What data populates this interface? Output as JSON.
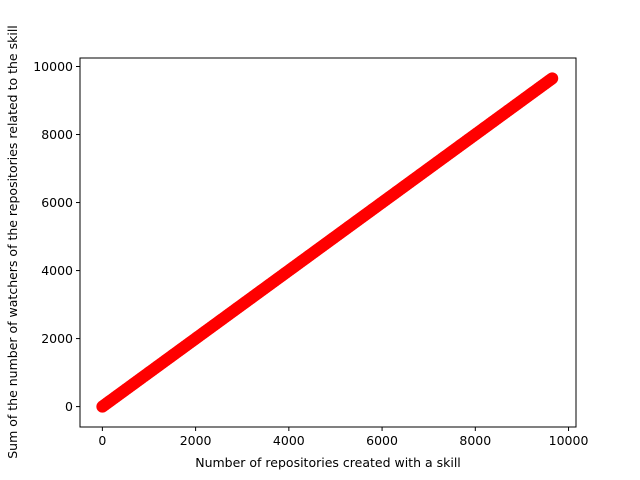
{
  "chart_data": {
    "type": "scatter",
    "title": "",
    "xlabel": "Number of repositories created with a skill",
    "ylabel": "Sum of the number of watchers of the repositories related to the skill",
    "xlim": [
      -480,
      10160
    ],
    "ylim": [
      -600,
      10250
    ],
    "xticks": [
      0,
      2000,
      4000,
      6000,
      8000,
      10000
    ],
    "yticks": [
      0,
      2000,
      4000,
      6000,
      8000,
      10000
    ],
    "xtick_labels": [
      "0",
      "2000",
      "4000",
      "6000",
      "8000",
      "10000"
    ],
    "ytick_labels": [
      "0",
      "2000",
      "4000",
      "6000",
      "8000",
      "10000"
    ],
    "marker_color": "#ff0000",
    "grid": false,
    "series": [
      {
        "points_range": {
          "start": 0,
          "end": 9650
        },
        "relation": "y = x",
        "x": [
          0,
          50,
          100,
          200,
          500,
          1000,
          1500,
          2000,
          2500,
          3000,
          3500,
          4000,
          4500,
          5000,
          5500,
          6000,
          6500,
          7000,
          7500,
          8000,
          8500,
          9000,
          9500,
          9650
        ],
        "y": [
          0,
          50,
          100,
          200,
          500,
          1000,
          1500,
          2000,
          2500,
          3000,
          3500,
          4000,
          4500,
          5000,
          5500,
          6000,
          6500,
          7000,
          7500,
          8000,
          8500,
          9000,
          9500,
          9650
        ]
      }
    ]
  }
}
